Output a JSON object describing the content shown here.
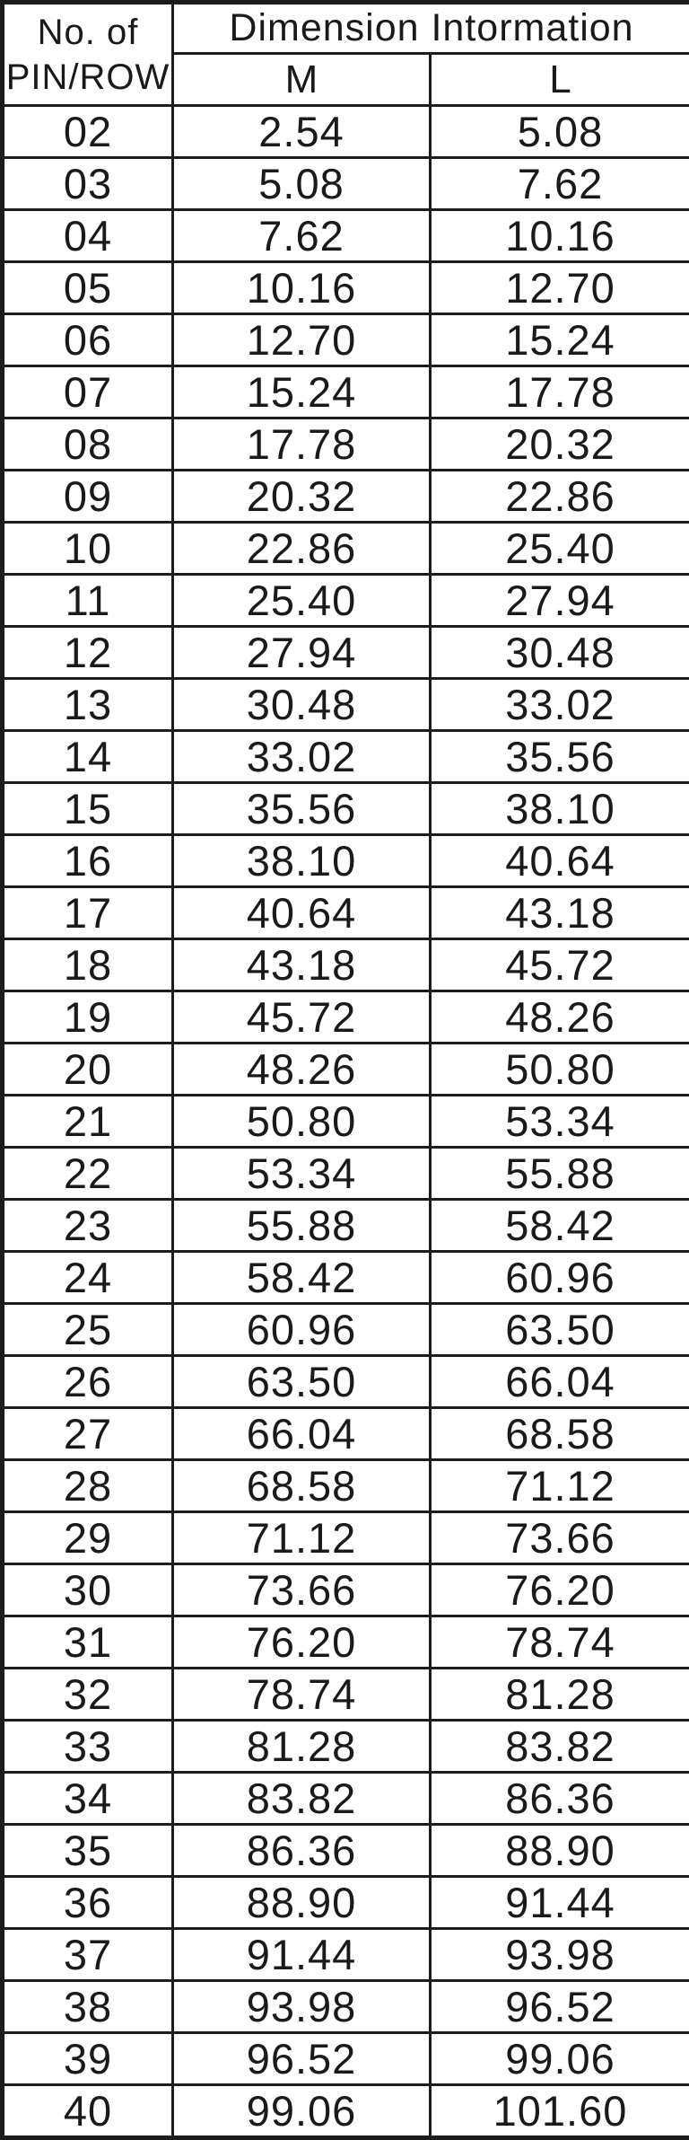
{
  "table": {
    "header": {
      "pin_line1": "No. of",
      "pin_line2": "PIN/ROW",
      "dimension": "Dimension Intormation",
      "col_m": "M",
      "col_l": "L"
    },
    "rows": [
      {
        "pin": "02",
        "m": "2.54",
        "l": "5.08"
      },
      {
        "pin": "03",
        "m": "5.08",
        "l": "7.62"
      },
      {
        "pin": "04",
        "m": "7.62",
        "l": "10.16"
      },
      {
        "pin": "05",
        "m": "10.16",
        "l": "12.70"
      },
      {
        "pin": "06",
        "m": "12.70",
        "l": "15.24"
      },
      {
        "pin": "07",
        "m": "15.24",
        "l": "17.78"
      },
      {
        "pin": "08",
        "m": "17.78",
        "l": "20.32"
      },
      {
        "pin": "09",
        "m": "20.32",
        "l": "22.86"
      },
      {
        "pin": "10",
        "m": "22.86",
        "l": "25.40"
      },
      {
        "pin": "11",
        "m": "25.40",
        "l": "27.94"
      },
      {
        "pin": "12",
        "m": "27.94",
        "l": "30.48"
      },
      {
        "pin": "13",
        "m": "30.48",
        "l": "33.02"
      },
      {
        "pin": "14",
        "m": "33.02",
        "l": "35.56"
      },
      {
        "pin": "15",
        "m": "35.56",
        "l": "38.10"
      },
      {
        "pin": "16",
        "m": "38.10",
        "l": "40.64"
      },
      {
        "pin": "17",
        "m": "40.64",
        "l": "43.18"
      },
      {
        "pin": "18",
        "m": "43.18",
        "l": "45.72"
      },
      {
        "pin": "19",
        "m": "45.72",
        "l": "48.26"
      },
      {
        "pin": "20",
        "m": "48.26",
        "l": "50.80"
      },
      {
        "pin": "21",
        "m": "50.80",
        "l": "53.34"
      },
      {
        "pin": "22",
        "m": "53.34",
        "l": "55.88"
      },
      {
        "pin": "23",
        "m": "55.88",
        "l": "58.42"
      },
      {
        "pin": "24",
        "m": "58.42",
        "l": "60.96"
      },
      {
        "pin": "25",
        "m": "60.96",
        "l": "63.50"
      },
      {
        "pin": "26",
        "m": "63.50",
        "l": "66.04"
      },
      {
        "pin": "27",
        "m": "66.04",
        "l": "68.58"
      },
      {
        "pin": "28",
        "m": "68.58",
        "l": "71.12"
      },
      {
        "pin": "29",
        "m": "71.12",
        "l": "73.66"
      },
      {
        "pin": "30",
        "m": "73.66",
        "l": "76.20"
      },
      {
        "pin": "31",
        "m": "76.20",
        "l": "78.74"
      },
      {
        "pin": "32",
        "m": "78.74",
        "l": "81.28"
      },
      {
        "pin": "33",
        "m": "81.28",
        "l": "83.82"
      },
      {
        "pin": "34",
        "m": "83.82",
        "l": "86.36"
      },
      {
        "pin": "35",
        "m": "86.36",
        "l": "88.90"
      },
      {
        "pin": "36",
        "m": "88.90",
        "l": "91.44"
      },
      {
        "pin": "37",
        "m": "91.44",
        "l": "93.98"
      },
      {
        "pin": "38",
        "m": "93.98",
        "l": "96.52"
      },
      {
        "pin": "39",
        "m": "96.52",
        "l": "99.06"
      },
      {
        "pin": "40",
        "m": "99.06",
        "l": "101.60"
      }
    ]
  }
}
